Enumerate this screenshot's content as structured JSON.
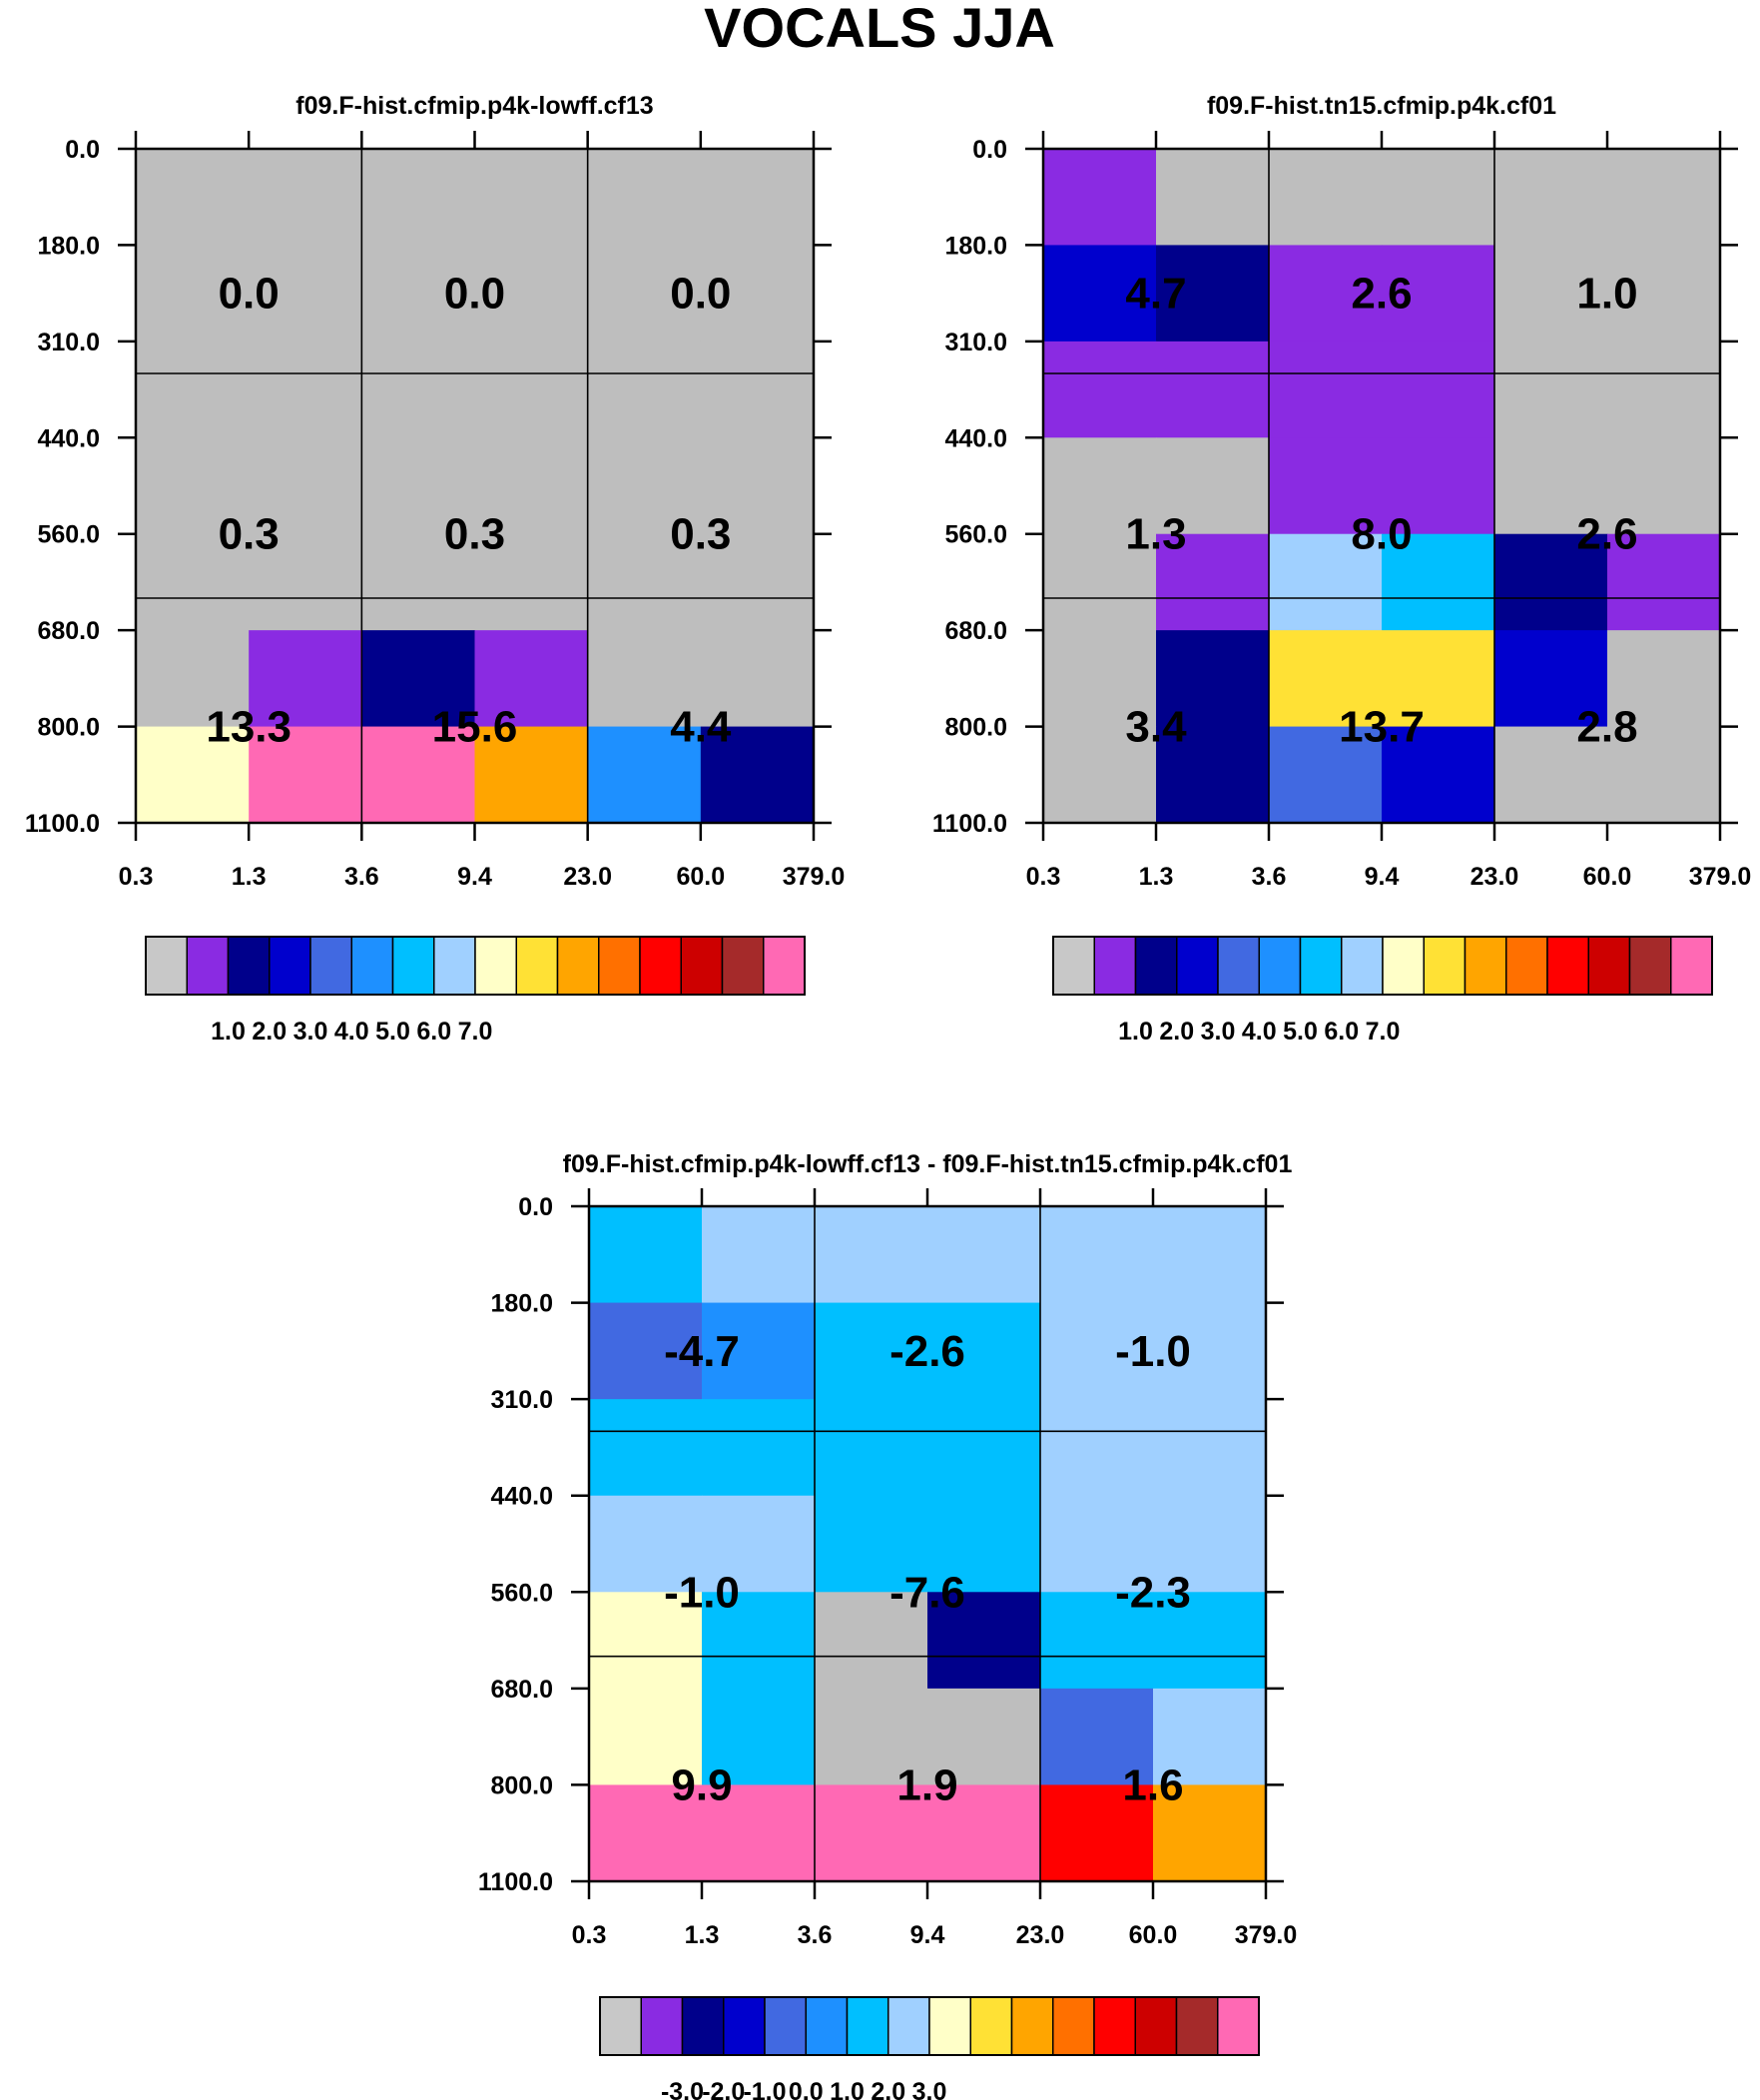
{
  "figure": {
    "title": "VOCALS JJA"
  },
  "chart_data": [
    {
      "type": "heatmap",
      "title": "f09.F-hist.cfmip.p4k-lowff.cf13",
      "x_tick_labels": [
        "0.3",
        "1.3",
        "3.6",
        "9.4",
        "23.0",
        "60.0",
        "379.0"
      ],
      "y_tick_labels": [
        "0.0",
        "180.0",
        "310.0",
        "440.0",
        "560.0",
        "680.0",
        "800.0",
        "1100.0"
      ],
      "cell_colors": [
        [
          "#bebebe",
          "#bebebe",
          "#bebebe",
          "#bebebe",
          "#bebebe",
          "#bebebe"
        ],
        [
          "#bebebe",
          "#bebebe",
          "#bebebe",
          "#bebebe",
          "#bebebe",
          "#bebebe"
        ],
        [
          "#bebebe",
          "#bebebe",
          "#bebebe",
          "#bebebe",
          "#bebebe",
          "#bebebe"
        ],
        [
          "#bebebe",
          "#bebebe",
          "#bebebe",
          "#bebebe",
          "#bebebe",
          "#bebebe"
        ],
        [
          "#bebebe",
          "#bebebe",
          "#bebebe",
          "#bebebe",
          "#bebebe",
          "#bebebe"
        ],
        [
          "#bebebe",
          "#8a2be2",
          "#00008b",
          "#8a2be2",
          "#bebebe",
          "#bebebe"
        ],
        [
          "#ffffc8",
          "#ff69b4",
          "#ff69b4",
          "#ffa500",
          "#1e90ff",
          "#00008b"
        ]
      ],
      "box_values": [
        [
          "0.0",
          "0.0",
          "0.0"
        ],
        [
          "0.3",
          "0.3",
          "0.3"
        ],
        [
          "13.3",
          "15.6",
          "4.4"
        ]
      ],
      "colorbar": {
        "colors": [
          "#c8c8c8",
          "#8a2be2",
          "#00008b",
          "#0000cd",
          "#4169e1",
          "#1e90ff",
          "#00bfff",
          "#a0d0ff",
          "#ffffc8",
          "#ffe135",
          "#ffa500",
          "#ff7000",
          "#ff0000",
          "#cd0000",
          "#a52a2a",
          "#ff69b4"
        ],
        "tick_labels": [
          "1.0",
          "2.0",
          "3.0",
          "4.0",
          "5.0",
          "6.0",
          "7.0"
        ]
      }
    },
    {
      "type": "heatmap",
      "title": "f09.F-hist.tn15.cfmip.p4k.cf01",
      "x_tick_labels": [
        "0.3",
        "1.3",
        "3.6",
        "9.4",
        "23.0",
        "60.0",
        "379.0"
      ],
      "y_tick_labels": [
        "0.0",
        "180.0",
        "310.0",
        "440.0",
        "560.0",
        "680.0",
        "800.0",
        "1100.0"
      ],
      "cell_colors": [
        [
          "#8a2be2",
          "#bebebe",
          "#bebebe",
          "#bebebe",
          "#bebebe",
          "#bebebe"
        ],
        [
          "#0000cd",
          "#00008b",
          "#8a2be2",
          "#8a2be2",
          "#bebebe",
          "#bebebe"
        ],
        [
          "#8a2be2",
          "#8a2be2",
          "#8a2be2",
          "#8a2be2",
          "#bebebe",
          "#bebebe"
        ],
        [
          "#bebebe",
          "#bebebe",
          "#8a2be2",
          "#8a2be2",
          "#bebebe",
          "#bebebe"
        ],
        [
          "#bebebe",
          "#8a2be2",
          "#a0d0ff",
          "#00bfff",
          "#00008b",
          "#8a2be2"
        ],
        [
          "#bebebe",
          "#00008b",
          "#ffe135",
          "#ffe135",
          "#0000cd",
          "#bebebe"
        ],
        [
          "#bebebe",
          "#00008b",
          "#4169e1",
          "#0000cd",
          "#bebebe",
          "#bebebe"
        ]
      ],
      "box_values": [
        [
          "4.7",
          "2.6",
          "1.0"
        ],
        [
          "1.3",
          "8.0",
          "2.6"
        ],
        [
          "3.4",
          "13.7",
          "2.8"
        ]
      ],
      "colorbar": {
        "colors": [
          "#c8c8c8",
          "#8a2be2",
          "#00008b",
          "#0000cd",
          "#4169e1",
          "#1e90ff",
          "#00bfff",
          "#a0d0ff",
          "#ffffc8",
          "#ffe135",
          "#ffa500",
          "#ff7000",
          "#ff0000",
          "#cd0000",
          "#a52a2a",
          "#ff69b4"
        ],
        "tick_labels": [
          "1.0",
          "2.0",
          "3.0",
          "4.0",
          "5.0",
          "6.0",
          "7.0"
        ]
      }
    },
    {
      "type": "heatmap",
      "title": "f09.F-hist.cfmip.p4k-lowff.cf13 - f09.F-hist.tn15.cfmip.p4k.cf01",
      "x_tick_labels": [
        "0.3",
        "1.3",
        "3.6",
        "9.4",
        "23.0",
        "60.0",
        "379.0"
      ],
      "y_tick_labels": [
        "0.0",
        "180.0",
        "310.0",
        "440.0",
        "560.0",
        "680.0",
        "800.0",
        "1100.0"
      ],
      "cell_colors": [
        [
          "#00bfff",
          "#a0d0ff",
          "#a0d0ff",
          "#a0d0ff",
          "#a0d0ff",
          "#a0d0ff"
        ],
        [
          "#4169e1",
          "#1e90ff",
          "#00bfff",
          "#00bfff",
          "#a0d0ff",
          "#a0d0ff"
        ],
        [
          "#00bfff",
          "#00bfff",
          "#00bfff",
          "#00bfff",
          "#a0d0ff",
          "#a0d0ff"
        ],
        [
          "#a0d0ff",
          "#a0d0ff",
          "#00bfff",
          "#00bfff",
          "#a0d0ff",
          "#a0d0ff"
        ],
        [
          "#ffffc8",
          "#00bfff",
          "#bebebe",
          "#00008b",
          "#00bfff",
          "#00bfff"
        ],
        [
          "#ffffc8",
          "#00bfff",
          "#bebebe",
          "#bebebe",
          "#4169e1",
          "#a0d0ff"
        ],
        [
          "#ff69b4",
          "#ff69b4",
          "#ff69b4",
          "#ff69b4",
          "#ff0000",
          "#ffa500"
        ]
      ],
      "box_values": [
        [
          "-4.7",
          "-2.6",
          "-1.0"
        ],
        [
          "-1.0",
          "-7.6",
          "-2.3"
        ],
        [
          "9.9",
          "1.9",
          "1.6"
        ]
      ],
      "colorbar": {
        "colors": [
          "#c8c8c8",
          "#8a2be2",
          "#00008b",
          "#0000cd",
          "#4169e1",
          "#1e90ff",
          "#00bfff",
          "#a0d0ff",
          "#ffffc8",
          "#ffe135",
          "#ffa500",
          "#ff7000",
          "#ff0000",
          "#cd0000",
          "#a52a2a",
          "#ff69b4"
        ],
        "tick_labels": [
          "-3.0",
          "-2.0",
          "-1.0",
          "0.0",
          "1.0",
          "2.0",
          "3.0"
        ]
      }
    }
  ]
}
